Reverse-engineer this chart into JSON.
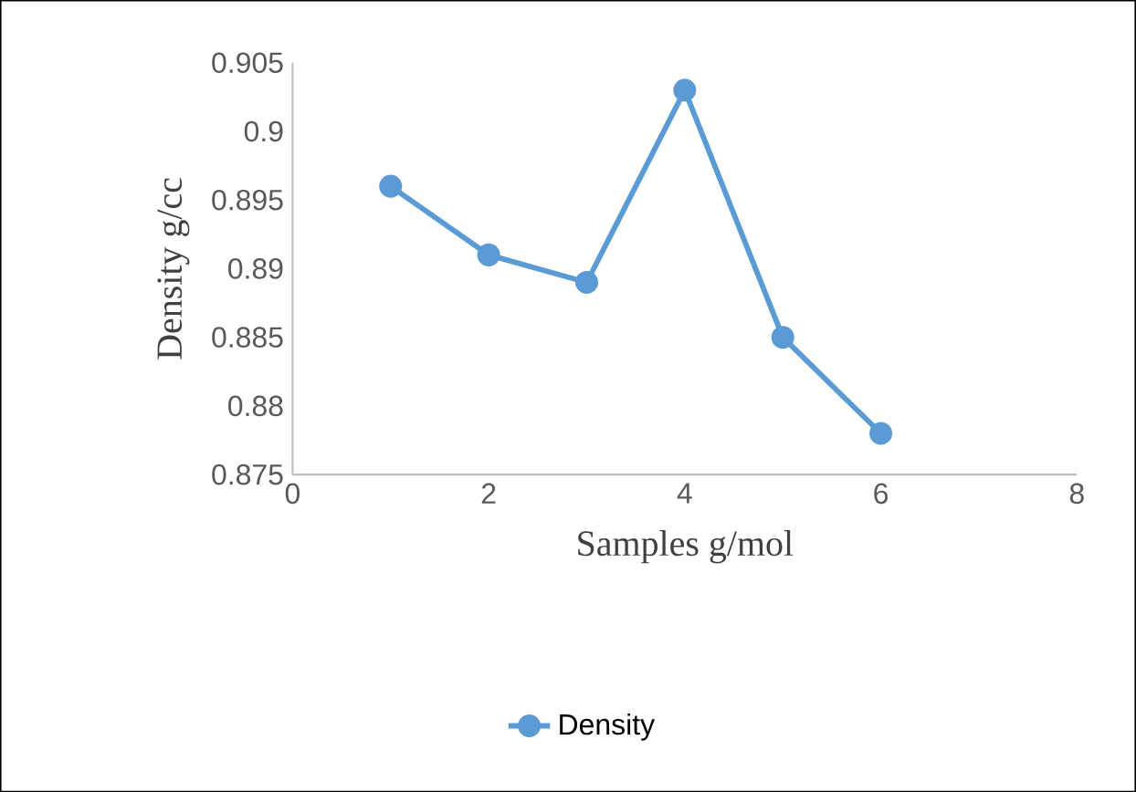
{
  "chart_data": {
    "type": "line",
    "xlabel": "Samples g/mol",
    "ylabel": "Density g/cc",
    "x": [
      1,
      2,
      3,
      4,
      5,
      6
    ],
    "series": [
      {
        "name": "Density",
        "color": "#5b9bd5",
        "values": [
          0.896,
          0.891,
          0.889,
          0.903,
          0.885,
          0.878
        ]
      }
    ],
    "xlim": [
      0,
      8
    ],
    "ylim": [
      0.875,
      0.905
    ],
    "xticks": [
      0,
      2,
      4,
      6,
      8
    ],
    "yticks": [
      0.875,
      0.88,
      0.885,
      0.89,
      0.895,
      0.9,
      0.905
    ],
    "legend": "bottom",
    "marker": "circle"
  }
}
